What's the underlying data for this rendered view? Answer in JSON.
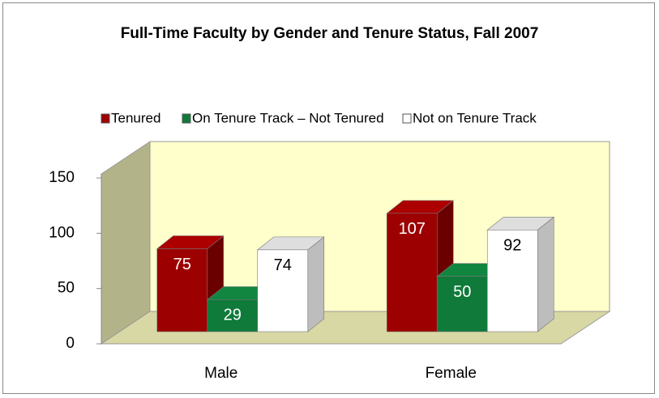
{
  "chart_data": {
    "type": "bar3d",
    "title": "Full-Time Faculty by Gender and Tenure Status, Fall 2007",
    "categories": [
      "Male",
      "Female"
    ],
    "series": [
      {
        "name": "Tenured",
        "color": "#9c0000",
        "values": [
          75,
          107
        ]
      },
      {
        "name": "On Tenure Track – Not Tenured",
        "color": "#0f7a3a",
        "values": [
          29,
          50
        ]
      },
      {
        "name": "Not on  Tenure Track",
        "color": "#ffffff",
        "values": [
          74,
          92
        ]
      }
    ],
    "ylim": [
      0,
      150
    ],
    "yticks": [
      0,
      50,
      100,
      150
    ],
    "legend": "top"
  }
}
